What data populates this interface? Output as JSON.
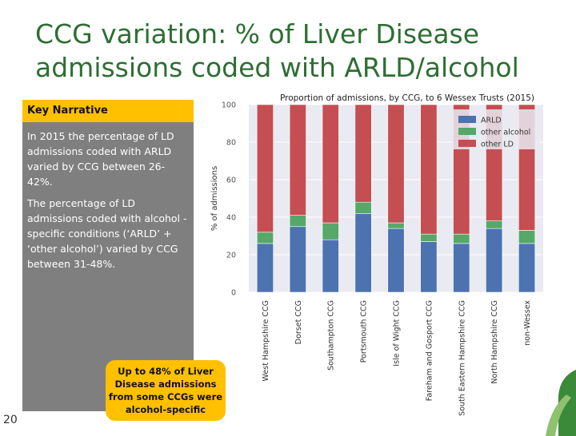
{
  "title": "CCG variation: % of Liver Disease admissions coded with ARLD/alcohol",
  "narrative": {
    "heading": "Key Narrative",
    "paragraphs": [
      "In 2015 the percentage of LD admissions coded with ARLD varied by CCG between 26-42%.",
      "The percentage of LD admissions coded with alcohol -specific conditions (‘ARLD’ + ‘other alcohol’) varied by CCG between 31-48%."
    ]
  },
  "callout": "Up to 48% of Liver Disease admissions from some CCGs were alcohol-specific",
  "page_number": "20",
  "colors": {
    "ARLD": "#4c72b0",
    "other alcohol": "#55a868",
    "other LD": "#c44e52",
    "plot_bg": "#eaeaf2",
    "title_green": "#2e6e33"
  },
  "chart_data": {
    "type": "bar",
    "stacked": true,
    "title": "Proportion of admissions, by CCG, to 6 Wessex Trusts (2015)",
    "ylabel": "% of admissions",
    "xlabel": "",
    "ylim": [
      0,
      100
    ],
    "yticks": [
      0,
      20,
      40,
      60,
      80,
      100
    ],
    "grid": true,
    "legend_position": "top-right",
    "categories": [
      "West Hampshire CCG",
      "Dorset CCG",
      "Southampton CCG",
      "Portsmouth CCG",
      "Isle of Wight CCG",
      "Fareham and Gosport CCG",
      "South Eastern Hampshire CCG",
      "North Hampshire CCG",
      "non-Wessex"
    ],
    "series": [
      {
        "name": "ARLD",
        "values": [
          26,
          35,
          28,
          42,
          34,
          27,
          26,
          34,
          26
        ]
      },
      {
        "name": "other alcohol",
        "values": [
          6,
          6,
          9,
          6,
          3,
          4,
          5,
          4,
          7
        ]
      },
      {
        "name": "other LD",
        "values": [
          68,
          59,
          63,
          52,
          63,
          69,
          69,
          62,
          67
        ]
      }
    ]
  }
}
